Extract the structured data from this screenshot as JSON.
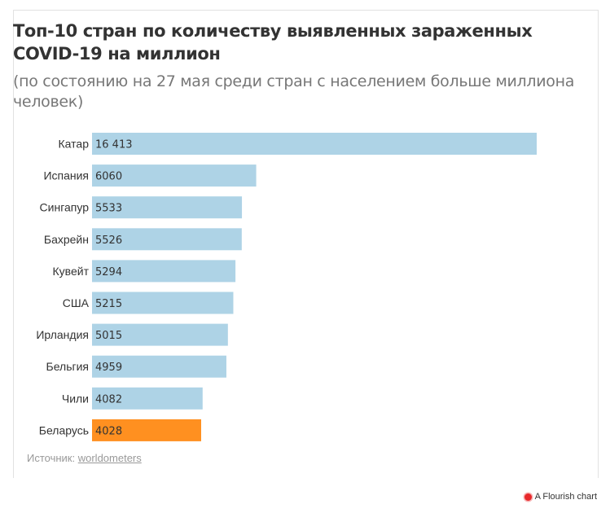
{
  "title": "Топ-10 стран по количеству выявленных зараженных COVID-19 на миллион",
  "subtitle": "(по состоянию на 27 мая среди стран с населением больше миллиона человек)",
  "source": {
    "prefix": "Источник:",
    "link_text": "worldometers"
  },
  "footer": {
    "credit": "A Flourish chart",
    "icon": "flourish-logo-icon"
  },
  "colors": {
    "default_bar": "#aed3e6",
    "highlight_bar": "#ff9020"
  },
  "chart_data": {
    "type": "bar",
    "orientation": "horizontal",
    "categories": [
      "Катар",
      "Испания",
      "Сингапур",
      "Бахрейн",
      "Кувейт",
      "США",
      "Ирландия",
      "Бельгия",
      "Чили",
      "Беларусь"
    ],
    "values": [
      16413,
      6060,
      5533,
      5526,
      5294,
      5215,
      5015,
      4959,
      4082,
      4028
    ],
    "value_labels": [
      "16 413",
      "6060",
      "5533",
      "5526",
      "5294",
      "5215",
      "5015",
      "4959",
      "4082",
      "4028"
    ],
    "highlight": "Беларусь",
    "xlim": [
      0,
      16413
    ]
  }
}
